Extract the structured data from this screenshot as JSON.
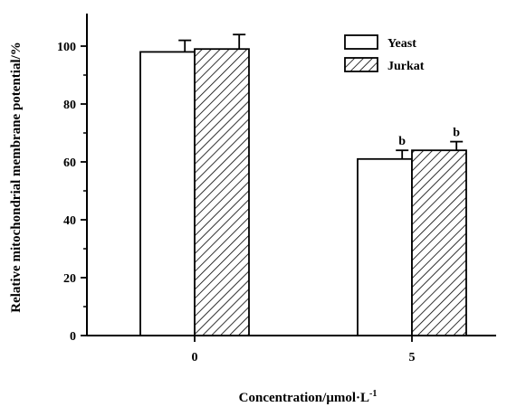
{
  "chart_data": {
    "type": "bar",
    "categories": [
      "0",
      "5"
    ],
    "series": [
      {
        "name": "Yeast",
        "pattern": "open",
        "values": [
          98,
          61
        ],
        "errors": [
          4,
          3
        ],
        "annotations": [
          "",
          "b"
        ]
      },
      {
        "name": "Jurkat",
        "pattern": "hatched",
        "values": [
          99,
          64
        ],
        "errors": [
          5,
          3
        ],
        "annotations": [
          "",
          "b"
        ]
      }
    ],
    "xlabel": "Concentration/μmol·L",
    "xlabel_superscript": "-1",
    "ylabel": "Relative mitochondrial membrane potential/%",
    "ylim": [
      0,
      110
    ],
    "yticks": [
      0,
      20,
      40,
      60,
      80,
      100
    ],
    "legend_position": "top-right",
    "grid": false,
    "colors": {
      "axis": "#000000",
      "bar_fill": "#ffffff",
      "hatch": "#000000"
    }
  }
}
